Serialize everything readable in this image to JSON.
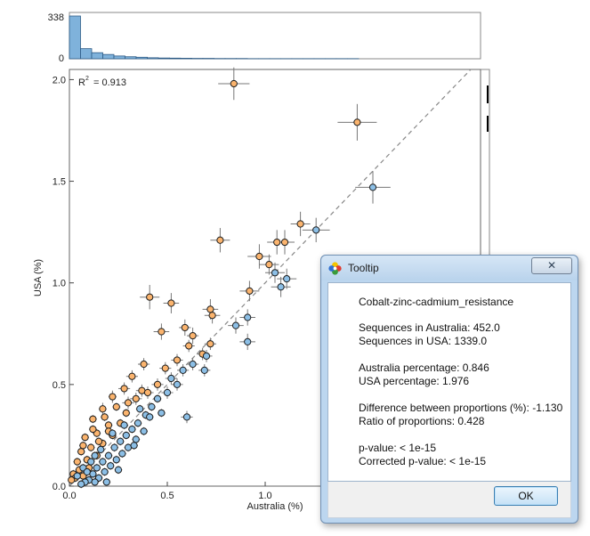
{
  "chart_data": {
    "type": "scatter",
    "title": "",
    "xlabel": "Australia (%)",
    "ylabel": "USA (%)",
    "xlim": [
      0,
      2.1
    ],
    "ylim": [
      0,
      2.05
    ],
    "x_ticks": [
      "0.0",
      "0.5",
      "1.0"
    ],
    "y_ticks": [
      "0.0",
      "0.5",
      "1.0",
      "1.5",
      "2.0"
    ],
    "r2_label": "R",
    "r2_value": "= 0.913",
    "reference_line": "y = x (dashed)",
    "histogram_top": {
      "y_ticks": [
        "338",
        "0"
      ],
      "values": [
        338,
        80,
        48,
        34,
        22,
        16,
        12,
        8,
        6,
        5,
        4,
        3,
        3,
        2,
        2,
        2,
        1,
        1,
        1,
        1,
        1,
        1,
        1,
        1,
        1,
        1
      ]
    },
    "series": [
      {
        "color": "#fbb46e",
        "points": [
          [
            0.84,
            1.98,
            0.08,
            0.08
          ],
          [
            1.47,
            1.79,
            0.1,
            0.09
          ],
          [
            0.77,
            1.21,
            0.05,
            0.06
          ],
          [
            1.18,
            1.29,
            0.05,
            0.06
          ],
          [
            0.97,
            1.13,
            0.06,
            0.06
          ],
          [
            1.02,
            1.09,
            0.05,
            0.05
          ],
          [
            1.06,
            1.2,
            0.05,
            0.06
          ],
          [
            1.1,
            1.2,
            0.05,
            0.06
          ],
          [
            0.41,
            0.93,
            0.05,
            0.06
          ],
          [
            0.52,
            0.9,
            0.04,
            0.05
          ],
          [
            0.92,
            0.96,
            0.05,
            0.05
          ],
          [
            0.72,
            0.87,
            0.04,
            0.05
          ],
          [
            0.47,
            0.76,
            0.04,
            0.04
          ],
          [
            0.73,
            0.84,
            0.04,
            0.04
          ],
          [
            0.59,
            0.78,
            0.03,
            0.04
          ],
          [
            0.72,
            0.7,
            0.03,
            0.03
          ],
          [
            0.61,
            0.69,
            0.03,
            0.03
          ],
          [
            0.68,
            0.65,
            0.03,
            0.03
          ],
          [
            0.38,
            0.6,
            0.03,
            0.03
          ],
          [
            0.49,
            0.58,
            0.03,
            0.03
          ],
          [
            0.32,
            0.54,
            0.03,
            0.03
          ],
          [
            0.45,
            0.5,
            0.03,
            0.03
          ],
          [
            0.28,
            0.48,
            0.03,
            0.03
          ],
          [
            0.37,
            0.47,
            0.03,
            0.03
          ],
          [
            0.22,
            0.44,
            0.02,
            0.03
          ],
          [
            0.17,
            0.38,
            0.02,
            0.03
          ],
          [
            0.34,
            0.43,
            0.03,
            0.03
          ],
          [
            0.24,
            0.39,
            0.02,
            0.02
          ],
          [
            0.29,
            0.36,
            0.02,
            0.02
          ],
          [
            0.12,
            0.33,
            0.02,
            0.02
          ],
          [
            0.2,
            0.3,
            0.02,
            0.02
          ],
          [
            0.26,
            0.31,
            0.02,
            0.02
          ],
          [
            0.14,
            0.26,
            0.02,
            0.02
          ],
          [
            0.22,
            0.25,
            0.02,
            0.02
          ],
          [
            0.08,
            0.24,
            0.02,
            0.02
          ],
          [
            0.17,
            0.21,
            0.02,
            0.02
          ],
          [
            0.11,
            0.19,
            0.02,
            0.02
          ],
          [
            0.06,
            0.17,
            0.02,
            0.02
          ],
          [
            0.14,
            0.15,
            0.02,
            0.02
          ],
          [
            0.09,
            0.13,
            0.02,
            0.02
          ],
          [
            0.04,
            0.12,
            0.02,
            0.02
          ],
          [
            0.1,
            0.09,
            0.02,
            0.02
          ],
          [
            0.05,
            0.08,
            0.02,
            0.02
          ],
          [
            0.02,
            0.06,
            0.02,
            0.02
          ],
          [
            0.07,
            0.05,
            0.02,
            0.02
          ],
          [
            0.03,
            0.04,
            0.02,
            0.02
          ],
          [
            0.01,
            0.03,
            0.01,
            0.01
          ],
          [
            0.12,
            0.28,
            0.02,
            0.02
          ],
          [
            0.18,
            0.34,
            0.02,
            0.02
          ],
          [
            0.07,
            0.2,
            0.02,
            0.02
          ],
          [
            0.15,
            0.22,
            0.02,
            0.02
          ],
          [
            0.2,
            0.27,
            0.02,
            0.02
          ],
          [
            0.3,
            0.41,
            0.03,
            0.03
          ],
          [
            0.4,
            0.46,
            0.03,
            0.03
          ],
          [
            0.55,
            0.62,
            0.03,
            0.03
          ],
          [
            0.63,
            0.74,
            0.03,
            0.04
          ]
        ]
      },
      {
        "color": "#8cbfe6",
        "points": [
          [
            1.55,
            1.47,
            0.09,
            0.08
          ],
          [
            1.26,
            1.26,
            0.07,
            0.06
          ],
          [
            1.05,
            1.05,
            0.05,
            0.05
          ],
          [
            1.11,
            1.02,
            0.05,
            0.05
          ],
          [
            1.08,
            0.98,
            0.05,
            0.05
          ],
          [
            0.91,
            0.83,
            0.04,
            0.04
          ],
          [
            0.85,
            0.79,
            0.04,
            0.04
          ],
          [
            0.91,
            0.71,
            0.04,
            0.04
          ],
          [
            0.7,
            0.64,
            0.03,
            0.03
          ],
          [
            0.63,
            0.6,
            0.03,
            0.03
          ],
          [
            0.69,
            0.57,
            0.03,
            0.03
          ],
          [
            0.58,
            0.57,
            0.03,
            0.03
          ],
          [
            0.6,
            0.34,
            0.03,
            0.03
          ],
          [
            0.55,
            0.5,
            0.03,
            0.03
          ],
          [
            0.5,
            0.46,
            0.03,
            0.03
          ],
          [
            0.45,
            0.43,
            0.02,
            0.02
          ],
          [
            0.42,
            0.39,
            0.02,
            0.02
          ],
          [
            0.47,
            0.36,
            0.02,
            0.02
          ],
          [
            0.39,
            0.35,
            0.02,
            0.02
          ],
          [
            0.35,
            0.31,
            0.02,
            0.02
          ],
          [
            0.38,
            0.27,
            0.02,
            0.02
          ],
          [
            0.32,
            0.28,
            0.02,
            0.02
          ],
          [
            0.29,
            0.25,
            0.02,
            0.02
          ],
          [
            0.34,
            0.23,
            0.02,
            0.02
          ],
          [
            0.26,
            0.22,
            0.02,
            0.02
          ],
          [
            0.3,
            0.19,
            0.02,
            0.02
          ],
          [
            0.23,
            0.19,
            0.02,
            0.02
          ],
          [
            0.27,
            0.16,
            0.02,
            0.02
          ],
          [
            0.2,
            0.15,
            0.02,
            0.02
          ],
          [
            0.24,
            0.13,
            0.02,
            0.02
          ],
          [
            0.17,
            0.12,
            0.02,
            0.02
          ],
          [
            0.21,
            0.1,
            0.02,
            0.02
          ],
          [
            0.14,
            0.09,
            0.02,
            0.02
          ],
          [
            0.18,
            0.07,
            0.02,
            0.02
          ],
          [
            0.12,
            0.06,
            0.02,
            0.02
          ],
          [
            0.15,
            0.04,
            0.02,
            0.02
          ],
          [
            0.1,
            0.03,
            0.02,
            0.02
          ],
          [
            0.13,
            0.02,
            0.02,
            0.02
          ],
          [
            0.08,
            0.02,
            0.02,
            0.02
          ],
          [
            0.06,
            0.01,
            0.02,
            0.02
          ],
          [
            0.04,
            0.05,
            0.02,
            0.02
          ],
          [
            0.07,
            0.09,
            0.02,
            0.02
          ],
          [
            0.11,
            0.12,
            0.02,
            0.02
          ],
          [
            0.16,
            0.18,
            0.02,
            0.02
          ],
          [
            0.22,
            0.26,
            0.02,
            0.02
          ],
          [
            0.28,
            0.3,
            0.02,
            0.02
          ],
          [
            0.36,
            0.38,
            0.02,
            0.02
          ],
          [
            0.41,
            0.34,
            0.02,
            0.02
          ],
          [
            0.52,
            0.53,
            0.03,
            0.03
          ],
          [
            0.33,
            0.2,
            0.02,
            0.02
          ],
          [
            0.25,
            0.08,
            0.02,
            0.02
          ],
          [
            0.19,
            0.02,
            0.02,
            0.02
          ],
          [
            0.09,
            0.07,
            0.02,
            0.02
          ],
          [
            0.13,
            0.15,
            0.02,
            0.02
          ]
        ]
      }
    ]
  },
  "tooltip": {
    "title": "Tooltip",
    "close_label": "✕",
    "feature": "Cobalt-zinc-cadmium_resistance",
    "seq_australia": "Sequences in Australia: 452.0",
    "seq_usa": "Sequences in USA: 1339.0",
    "pct_australia": "Australia percentage: 0.846",
    "pct_usa": "USA percentage: 1.976",
    "diff": "Difference between proportions (%): -1.130",
    "ratio": "Ratio of proportions: 0.428",
    "pvalue": "p-value: < 1e-15",
    "corrected_pvalue": "Corrected p-value: < 1e-15",
    "ok_label": "OK"
  },
  "colors": {
    "histogram_fill": "#7fb2db",
    "histogram_stroke": "#2c5a85",
    "dialog_frame": "#bcd6ef"
  }
}
